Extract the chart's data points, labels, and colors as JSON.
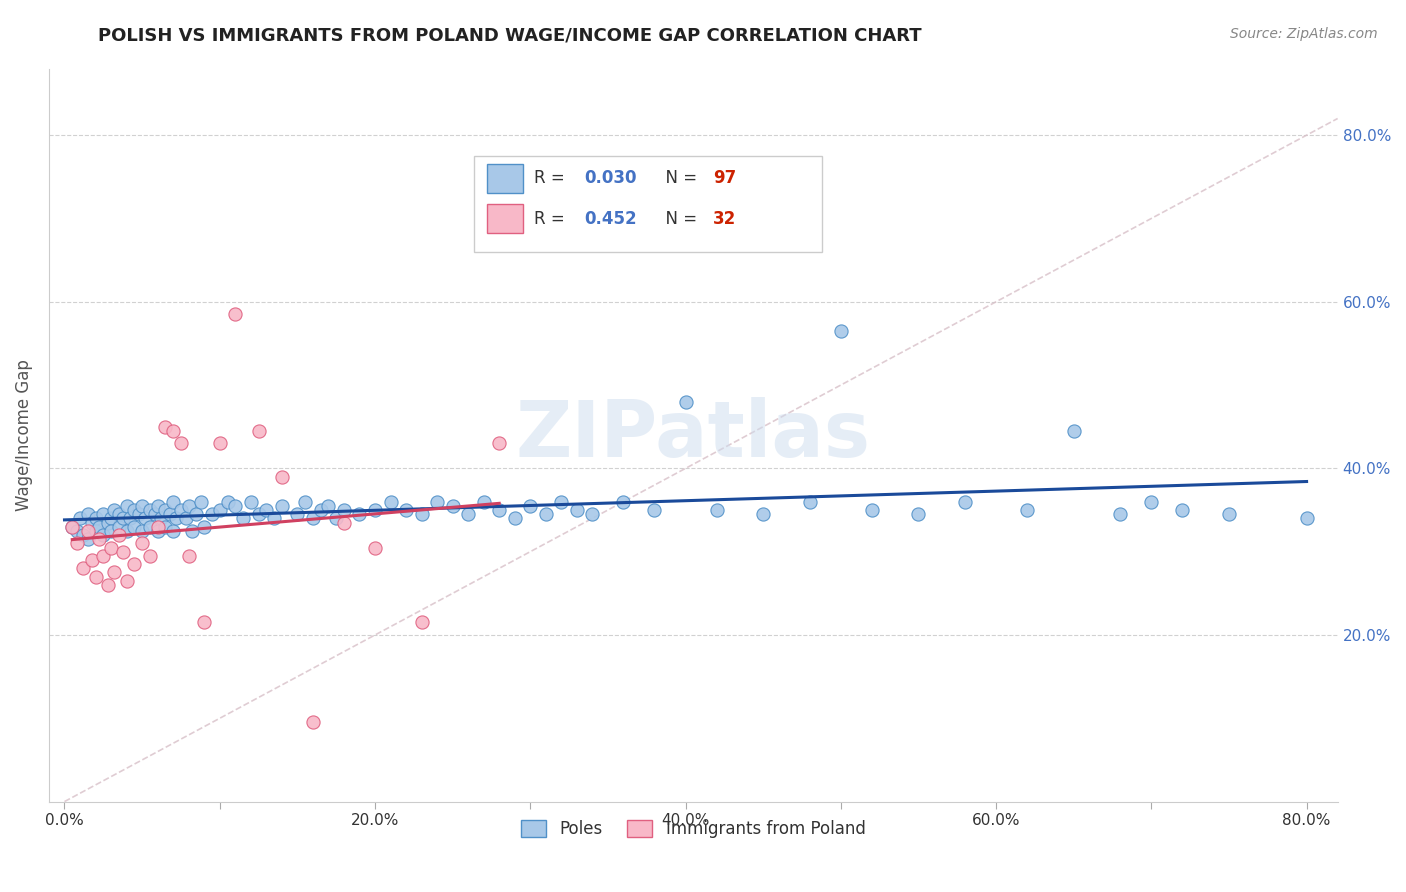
{
  "title": "POLISH VS IMMIGRANTS FROM POLAND WAGE/INCOME GAP CORRELATION CHART",
  "source": "Source: ZipAtlas.com",
  "ylabel": "Wage/Income Gap",
  "xlim": [
    -0.01,
    0.82
  ],
  "ylim": [
    0.0,
    0.88
  ],
  "color_poles": "#a8c8e8",
  "color_poles_edge": "#5090c8",
  "color_immigrants": "#f8b8c8",
  "color_immigrants_edge": "#e06080",
  "color_trend_poles": "#1a4a9a",
  "color_trend_immigrants": "#d04060",
  "color_diagonal": "#d8c0c8",
  "watermark": "ZIPatlas",
  "legend_r_poles": "0.030",
  "legend_n_poles": "97",
  "legend_r_immigrants": "0.452",
  "legend_n_immigrants": "32",
  "poles_x": [
    0.005,
    0.008,
    0.01,
    0.012,
    0.015,
    0.015,
    0.018,
    0.02,
    0.02,
    0.022,
    0.025,
    0.025,
    0.028,
    0.03,
    0.03,
    0.032,
    0.035,
    0.035,
    0.038,
    0.04,
    0.04,
    0.042,
    0.045,
    0.045,
    0.048,
    0.05,
    0.05,
    0.052,
    0.055,
    0.055,
    0.058,
    0.06,
    0.06,
    0.062,
    0.065,
    0.065,
    0.068,
    0.07,
    0.07,
    0.072,
    0.075,
    0.078,
    0.08,
    0.082,
    0.085,
    0.088,
    0.09,
    0.095,
    0.1,
    0.105,
    0.11,
    0.115,
    0.12,
    0.125,
    0.13,
    0.135,
    0.14,
    0.15,
    0.155,
    0.16,
    0.165,
    0.17,
    0.175,
    0.18,
    0.19,
    0.2,
    0.21,
    0.22,
    0.23,
    0.24,
    0.25,
    0.26,
    0.27,
    0.28,
    0.29,
    0.3,
    0.31,
    0.32,
    0.33,
    0.34,
    0.36,
    0.38,
    0.4,
    0.42,
    0.45,
    0.48,
    0.5,
    0.52,
    0.55,
    0.58,
    0.62,
    0.65,
    0.68,
    0.7,
    0.72,
    0.75,
    0.8
  ],
  "poles_y": [
    0.33,
    0.325,
    0.34,
    0.32,
    0.345,
    0.315,
    0.335,
    0.34,
    0.325,
    0.33,
    0.345,
    0.32,
    0.335,
    0.34,
    0.325,
    0.35,
    0.345,
    0.33,
    0.34,
    0.355,
    0.325,
    0.34,
    0.35,
    0.33,
    0.345,
    0.355,
    0.325,
    0.34,
    0.35,
    0.33,
    0.345,
    0.355,
    0.325,
    0.34,
    0.35,
    0.33,
    0.345,
    0.36,
    0.325,
    0.34,
    0.35,
    0.34,
    0.355,
    0.325,
    0.345,
    0.36,
    0.33,
    0.345,
    0.35,
    0.36,
    0.355,
    0.34,
    0.36,
    0.345,
    0.35,
    0.34,
    0.355,
    0.345,
    0.36,
    0.34,
    0.35,
    0.355,
    0.34,
    0.35,
    0.345,
    0.35,
    0.36,
    0.35,
    0.345,
    0.36,
    0.355,
    0.345,
    0.36,
    0.35,
    0.34,
    0.355,
    0.345,
    0.36,
    0.35,
    0.345,
    0.36,
    0.35,
    0.48,
    0.35,
    0.345,
    0.36,
    0.565,
    0.35,
    0.345,
    0.36,
    0.35,
    0.445,
    0.345,
    0.36,
    0.35,
    0.345,
    0.34
  ],
  "immigrants_x": [
    0.005,
    0.008,
    0.012,
    0.015,
    0.018,
    0.02,
    0.022,
    0.025,
    0.028,
    0.03,
    0.032,
    0.035,
    0.038,
    0.04,
    0.045,
    0.05,
    0.055,
    0.06,
    0.065,
    0.07,
    0.075,
    0.08,
    0.09,
    0.1,
    0.11,
    0.125,
    0.14,
    0.16,
    0.18,
    0.2,
    0.23,
    0.28
  ],
  "immigrants_y": [
    0.33,
    0.31,
    0.28,
    0.325,
    0.29,
    0.27,
    0.315,
    0.295,
    0.26,
    0.305,
    0.275,
    0.32,
    0.3,
    0.265,
    0.285,
    0.31,
    0.295,
    0.33,
    0.45,
    0.445,
    0.43,
    0.295,
    0.215,
    0.43,
    0.585,
    0.445,
    0.39,
    0.095,
    0.335,
    0.305,
    0.215,
    0.43
  ]
}
